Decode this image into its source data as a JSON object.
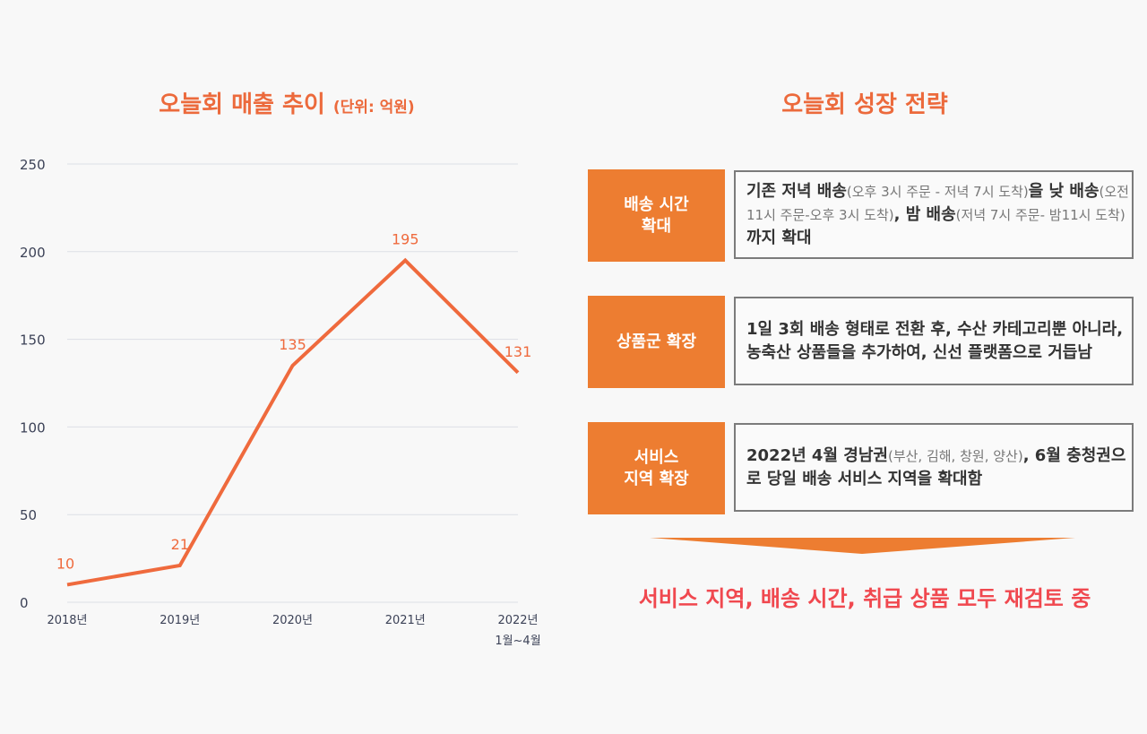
{
  "chart_data": {
    "type": "line",
    "title": "오늘회 매출 추이",
    "unit": "(단위: 억원)",
    "categories": [
      "2018년",
      "2019년",
      "2020년",
      "2021년",
      "2022년\n1월~4월"
    ],
    "values": [
      10,
      21,
      135,
      195,
      131
    ],
    "ylim": [
      0,
      250
    ],
    "yticks": [
      0,
      50,
      100,
      150,
      200,
      250
    ],
    "grid": true,
    "color": "#ef6a3d"
  },
  "strategy": {
    "title": "오늘회 성장 전략",
    "items": [
      {
        "label": "배송 시간\n확대",
        "segments": [
          [
            "기존 저녁 배송",
            0
          ],
          [
            "(오후 3시 주문 - 저녁 7시 도착)",
            1
          ],
          [
            "을 낮 배송",
            0
          ],
          [
            "(오전 11시 주문-오후 3시 도착)",
            1
          ],
          [
            ", 밤 배송",
            0
          ],
          [
            "(저녁 7시 주문- 밤11시 도착)",
            1
          ],
          [
            "까지 확대",
            0
          ]
        ]
      },
      {
        "label": "상품군 확장",
        "segments": [
          [
            "1일 3회 배송 형태로 전환 후, 수산 카테고리뿐 아니라, 농축산 상품들을 추가하여, 신선 플랫폼으로 거듭남",
            0
          ]
        ]
      },
      {
        "label": "서비스\n지역 확장",
        "segments": [
          [
            "2022년 4월 경남권",
            0
          ],
          [
            "(부산, 김해, 창원, 양산)",
            1
          ],
          [
            ", 6월 충청권으로 당일 배송 서비스 지역을 확대함",
            0
          ]
        ]
      }
    ],
    "conclusion": "서비스 지역, 배송 시간, 취급 상품 모두 재검토 중"
  }
}
